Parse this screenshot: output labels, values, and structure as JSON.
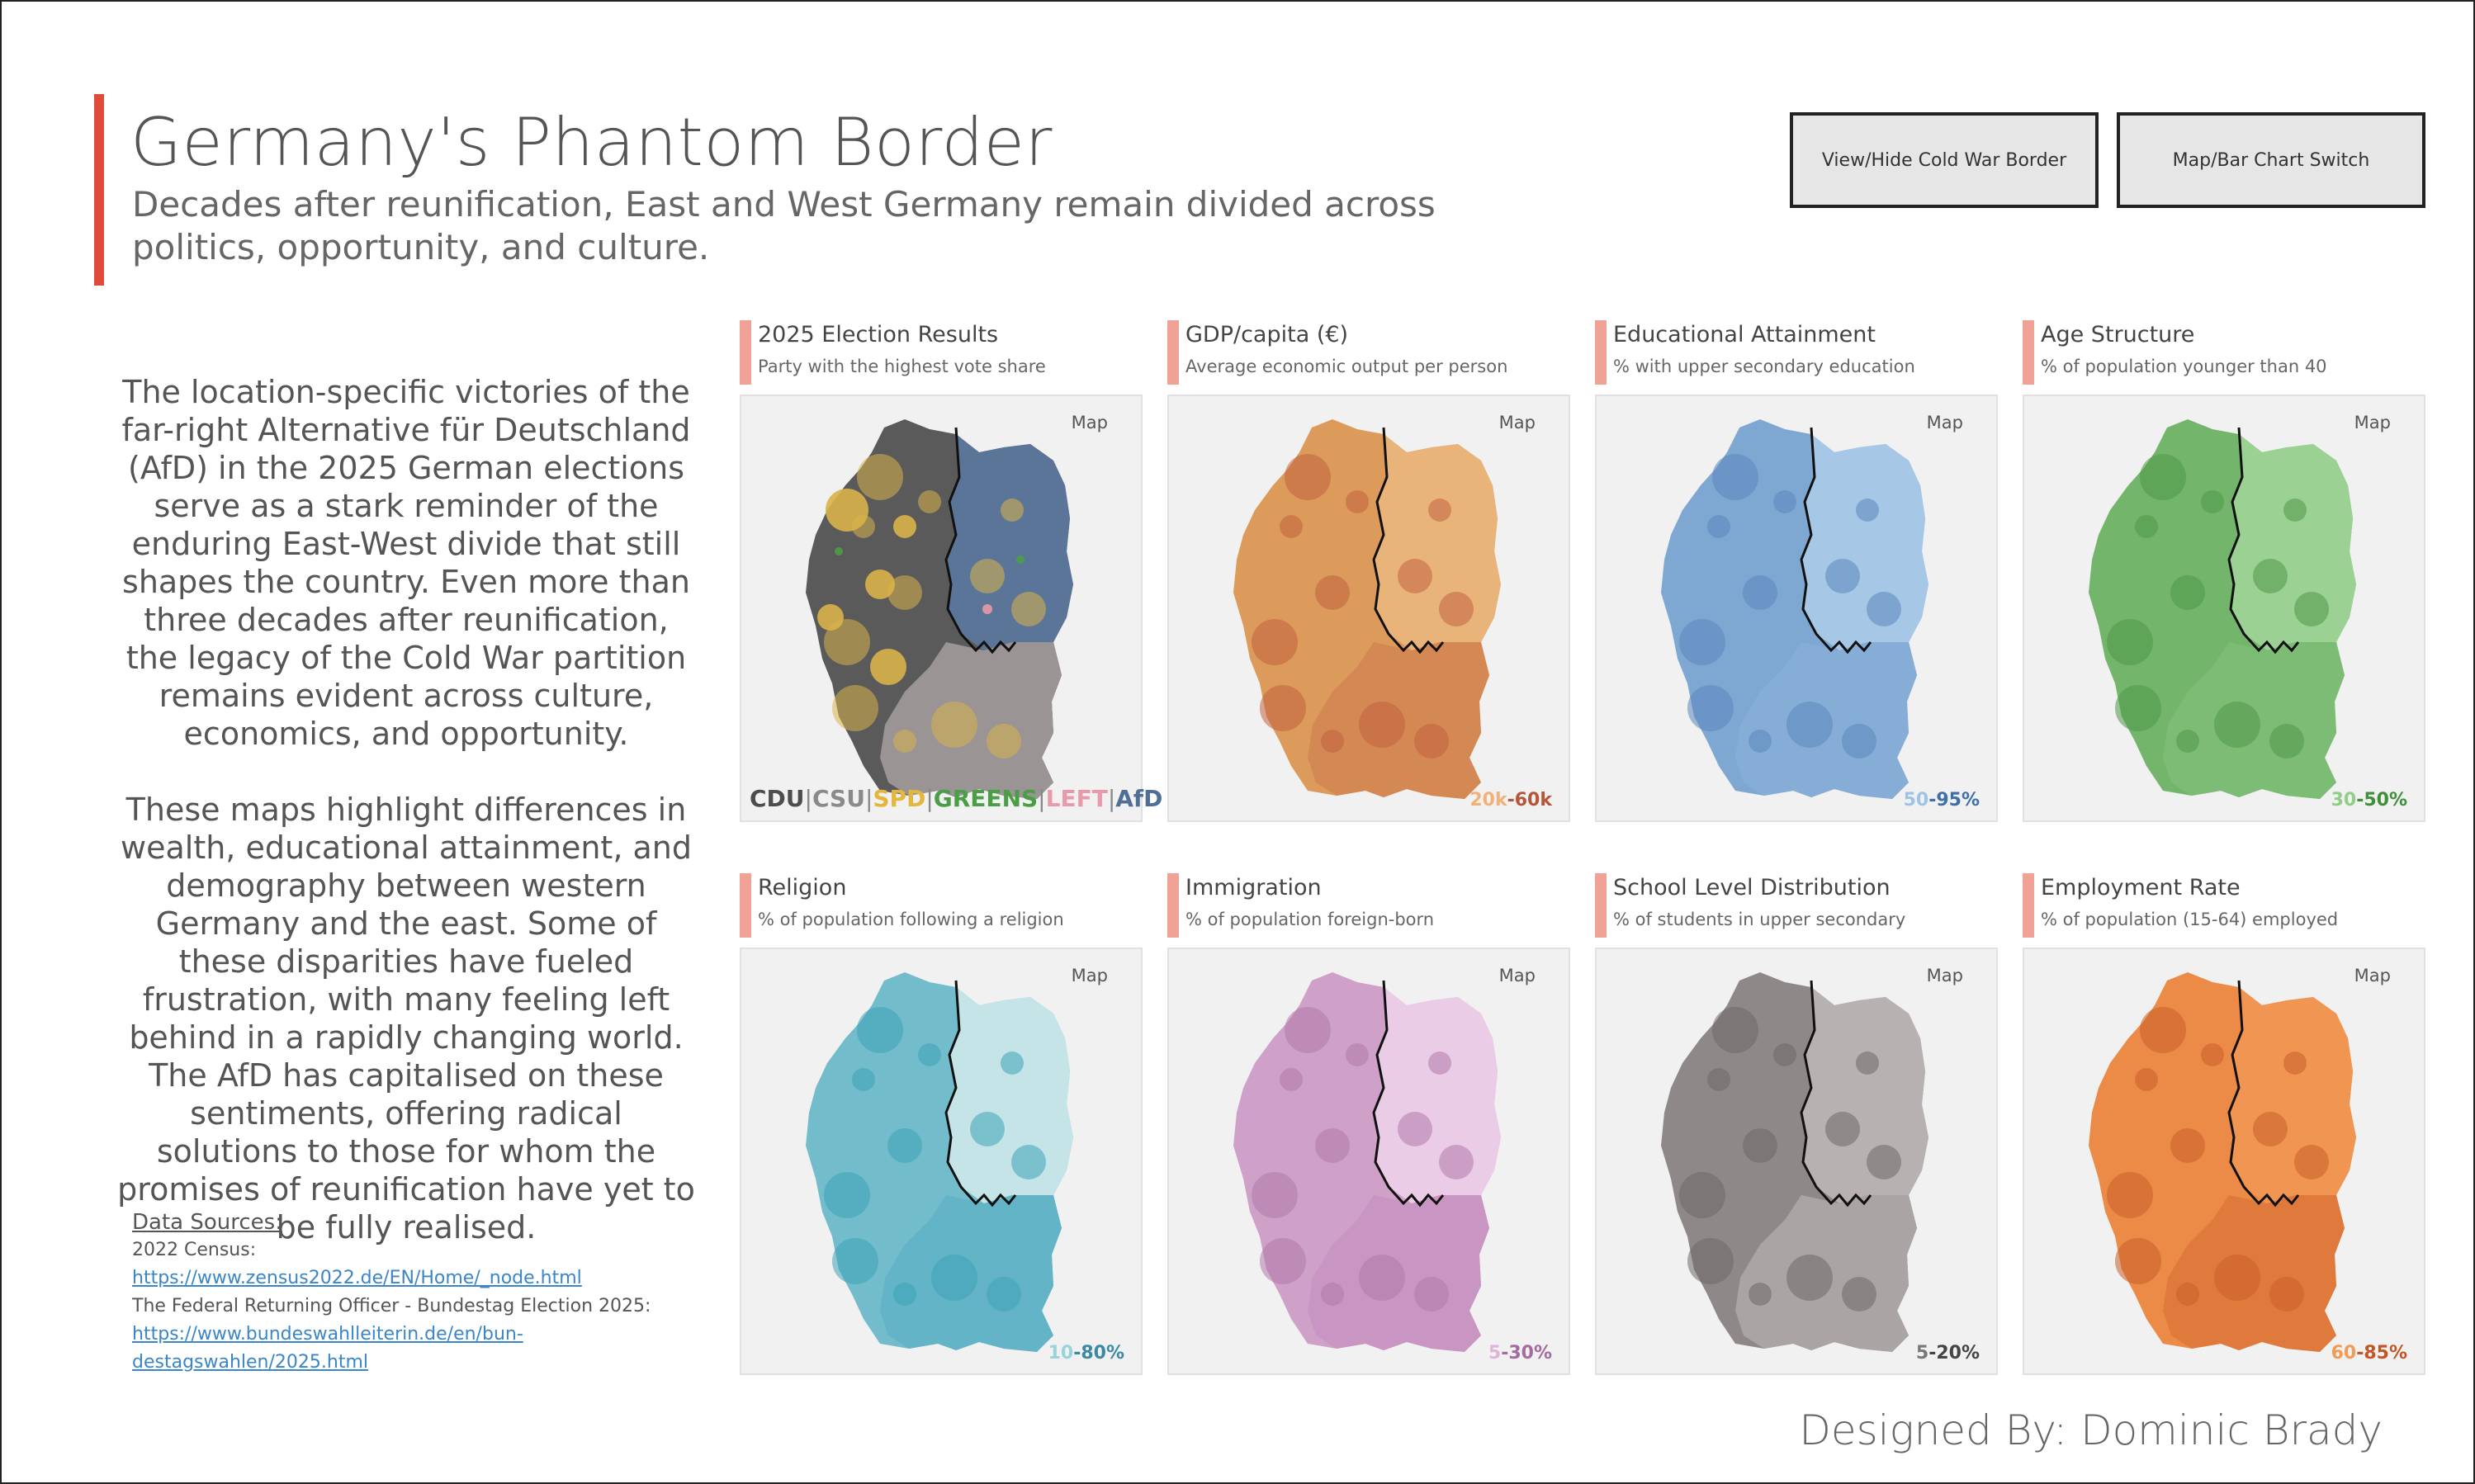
{
  "header": {
    "title": "Germany's Phantom Border",
    "subtitle": "Decades after reunification, East and West Germany remain divided across politics, opportunity, and culture."
  },
  "buttons": {
    "border_toggle": "View/Hide Cold War Border",
    "map_bar_switch": "Map/Bar Chart Switch"
  },
  "intro": {
    "p1": "The location-specific victories of the far-right Alternative für Deutschland (AfD) in the 2025 German elections serve as a stark reminder of the enduring East-West divide that still shapes the country. Even more than three decades after reunification, the legacy of the Cold War partition remains evident across culture, economics, and opportunity.",
    "p2": "These maps highlight differences in wealth, educational attainment, and demography between western Germany and the east. Some of these disparities have fueled frustration, with many feeling left behind in a rapidly changing world. The AfD has capitalised on these sentiments, offering radical solutions to those for whom the promises of reunification have yet to be fully realised."
  },
  "sources": {
    "heading": "Data Sources:",
    "census_label": "2022 Census:",
    "census_link": "https://www.zensus2022.de/EN/Home/_node.html",
    "election_label": "The Federal Returning Officer - Bundestag Election 2025:",
    "election_link": "https://www.bundeswahlleiterin.de/en/bun-destagswahlen/2025.html"
  },
  "designer": "Designed By: Dominic Brady",
  "map_label": "Map",
  "legend": {
    "parties": [
      {
        "name": "CDU",
        "color": "#4d4d4d"
      },
      {
        "name": "CSU",
        "color": "#8a8a8a"
      },
      {
        "name": "SPD",
        "color": "#e3b63d"
      },
      {
        "name": "GREENS",
        "color": "#4a9e45"
      },
      {
        "name": "LEFT",
        "color": "#e89aaa"
      },
      {
        "name": "AfD",
        "color": "#4f6f96"
      }
    ]
  },
  "panels": [
    {
      "title": "2025 Election Results",
      "subtitle": "Party with the highest vote share",
      "range_low": "",
      "range_high": "",
      "west": "#5a5a5a",
      "east": "#5b7599",
      "south": "#9a9494",
      "accent": "#d8b34a",
      "low_color": "",
      "high_color": ""
    },
    {
      "title": "GDP/capita (€)",
      "subtitle": "Average economic output per person",
      "range_low": "20k",
      "range_high": "-60k",
      "west": "#dc9a5b",
      "east": "#e9b47a",
      "south": "#d48853",
      "accent": "#c2633f",
      "low_color": "#f0b27a",
      "high_color": "#b5553a"
    },
    {
      "title": "Educational Attainment",
      "subtitle": "% with upper secondary education",
      "range_low": "50",
      "range_high": "-95%",
      "west": "#7ea7d2",
      "east": "#a6c8e6",
      "south": "#86add6",
      "accent": "#5b86bb",
      "low_color": "#9dc3e6",
      "high_color": "#3e6fa8"
    },
    {
      "title": "Age Structure",
      "subtitle": "% of population younger than 40",
      "range_low": "30",
      "range_high": "-50%",
      "west": "#72b56b",
      "east": "#9bd193",
      "south": "#7dbc74",
      "accent": "#4f9848",
      "low_color": "#8fcf85",
      "high_color": "#3f8f3a"
    },
    {
      "title": "Religion",
      "subtitle": "% of population following a religion",
      "range_low": "10",
      "range_high": "-80%",
      "west": "#72bccb",
      "east": "#c5e4e7",
      "south": "#62b4c6",
      "accent": "#3ea2b8",
      "low_color": "#98d2dc",
      "high_color": "#3a89a5"
    },
    {
      "title": "Immigration",
      "subtitle": "% of population foreign-born",
      "range_low": "5",
      "range_high": "-30%",
      "west": "#cfa0c8",
      "east": "#ebcce6",
      "south": "#c995c2",
      "accent": "#b07aaa",
      "low_color": "#e0b3da",
      "high_color": "#a56aa0"
    },
    {
      "title": "School Level Distribution",
      "subtitle": "% of students in upper secondary",
      "range_low": "5",
      "range_high": "-20%",
      "west": "#8f8888",
      "east": "#b7b1b1",
      "south": "#aaa4a4",
      "accent": "#6f6868",
      "low_color": "#777",
      "high_color": "#444"
    },
    {
      "title": "Employment Rate",
      "subtitle": "% of population (15-64) employed",
      "range_low": "60",
      "range_high": "-85%",
      "west": "#ec8a47",
      "east": "#f09552",
      "south": "#e07a3c",
      "accent": "#c95e2a",
      "low_color": "#f29b55",
      "high_color": "#c25624"
    }
  ]
}
